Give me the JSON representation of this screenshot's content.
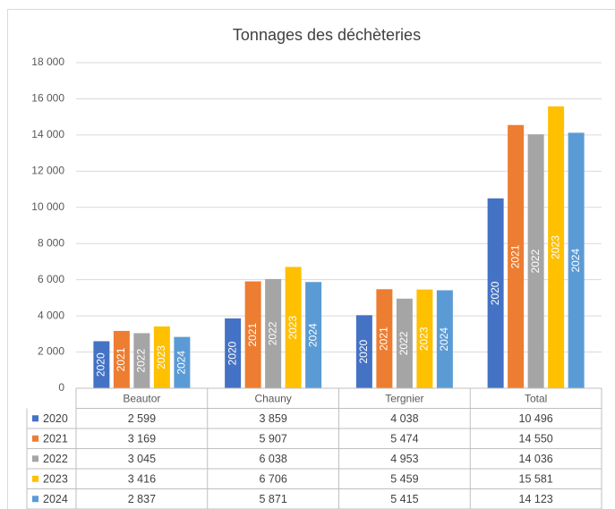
{
  "chart_data": {
    "type": "bar",
    "title": "Tonnages des déchèteries",
    "categories": [
      "Beautor",
      "Chauny",
      "Tergnier",
      "Total"
    ],
    "series": [
      {
        "name": "2020",
        "color": "#4472c4",
        "values": [
          2599,
          3859,
          4038,
          10496
        ],
        "value_labels": [
          "2 599",
          "3 859",
          "4 038",
          "10 496"
        ]
      },
      {
        "name": "2021",
        "color": "#ed7d31",
        "values": [
          3169,
          5907,
          5474,
          14550
        ],
        "value_labels": [
          "3 169",
          "5 907",
          "5 474",
          "14 550"
        ]
      },
      {
        "name": "2022",
        "color": "#a5a5a5",
        "values": [
          3045,
          6038,
          4953,
          14036
        ],
        "value_labels": [
          "3 045",
          "6 038",
          "4 953",
          "14 036"
        ]
      },
      {
        "name": "2023",
        "color": "#ffc000",
        "values": [
          3416,
          6706,
          5459,
          15581
        ],
        "value_labels": [
          "3 416",
          "6 706",
          "5 459",
          "15 581"
        ]
      },
      {
        "name": "2024",
        "color": "#5b9bd5",
        "values": [
          2837,
          5871,
          5415,
          14123
        ],
        "value_labels": [
          "2 837",
          "5 871",
          "5 415",
          "14 123"
        ]
      }
    ],
    "ylim": [
      0,
      18000
    ],
    "yticks": [
      0,
      {
        "value": 2000,
        "label": "2 000"
      },
      {
        "value": 4000,
        "label": "4 000"
      },
      {
        "value": 6000,
        "label": "6 000"
      },
      {
        "value": 8000,
        "label": "8 000"
      },
      {
        "value": 10000,
        "label": "10 000"
      },
      {
        "value": 12000,
        "label": "12 000"
      },
      {
        "value": 14000,
        "label": "14 000"
      },
      {
        "value": 16000,
        "label": "16 000"
      },
      {
        "value": 18000,
        "label": "18 000"
      }
    ],
    "grid": true
  }
}
